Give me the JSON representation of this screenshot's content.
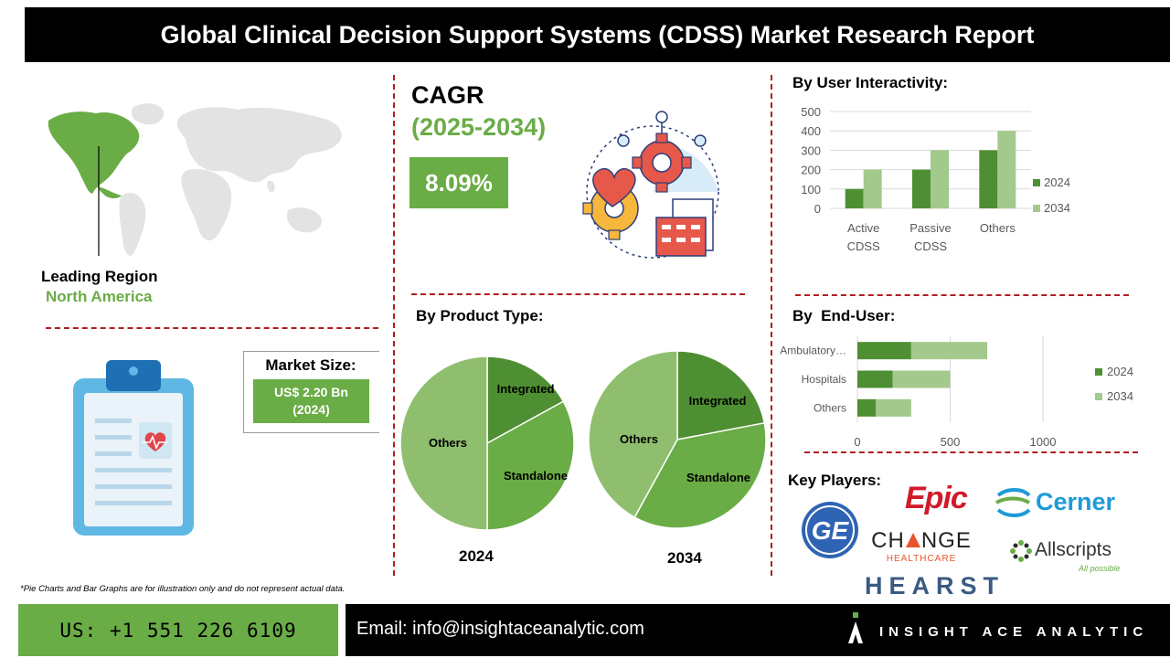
{
  "header": {
    "title": "Global Clinical Decision Support Systems (CDSS) Market Research Report"
  },
  "region": {
    "label": "Leading Region",
    "value": "North America"
  },
  "cagr": {
    "label": "CAGR",
    "period": "(2025-2034)",
    "value": "8.09%"
  },
  "market_size": {
    "label": "Market Size:",
    "value": "US$ 2.20 Bn",
    "year": "(2024)"
  },
  "sections": {
    "user_interactivity": "By User Interactivity:",
    "product_type": "By Product Type:",
    "end_user": "By  End-User:",
    "key_players": "Key Players:"
  },
  "chart_data": [
    {
      "type": "bar",
      "categories": [
        "Active CDSS",
        "Passive CDSS",
        "Others"
      ],
      "category_lines": [
        [
          "Active",
          "CDSS"
        ],
        [
          "Passive",
          "CDSS"
        ],
        [
          "Others"
        ]
      ],
      "series": [
        {
          "name": "2024",
          "values": [
            100,
            200,
            300
          ],
          "color": "#4f8f33"
        },
        {
          "name": "2034",
          "values": [
            200,
            300,
            400
          ],
          "color": "#a4c98c"
        }
      ],
      "ylim": [
        0,
        500
      ],
      "yticks": [
        "0",
        "100",
        "200",
        "300",
        "400",
        "500"
      ],
      "grid": true,
      "legend": "right"
    },
    {
      "type": "pie",
      "xlabel": "2024",
      "slices": [
        {
          "label": "Integrated",
          "value": 17,
          "color": "#4f8f33"
        },
        {
          "label": "Standalone",
          "value": 33,
          "color": "#6aac46"
        },
        {
          "label": "Others",
          "value": 50,
          "color": "#8fbf6e"
        }
      ]
    },
    {
      "type": "pie",
      "xlabel": "2034",
      "slices": [
        {
          "label": "Integrated",
          "value": 22,
          "color": "#4f8f33"
        },
        {
          "label": "Standalone",
          "value": 36,
          "color": "#6aac46"
        },
        {
          "label": "Others",
          "value": 42,
          "color": "#8fbf6e"
        }
      ]
    },
    {
      "type": "bar",
      "orientation": "horizontal",
      "categories": [
        "Ambulatory…",
        "Hospitals",
        "Others"
      ],
      "series": [
        {
          "name": "2024",
          "values": [
            290,
            190,
            100
          ],
          "color": "#4f8f33"
        },
        {
          "name": "2034",
          "values": [
            410,
            310,
            190
          ],
          "color": "#a4c98c"
        }
      ],
      "xlim": [
        0,
        1000
      ],
      "xticks": [
        "0",
        "500",
        "1000"
      ],
      "grid": true,
      "stacked": true,
      "legend": "right"
    }
  ],
  "key_players": {
    "ge": "GE",
    "epic": "Epic",
    "cerner": "Cerner",
    "change_line1": "CH",
    "change_line1b": "NGE",
    "change_line2": "HEALTHCARE",
    "allscripts": "Allscripts",
    "allscripts_tag": "All possible",
    "hearst": "HEARST"
  },
  "disclaimer": "*Pie Charts and Bar Graphs are for illustration only and do not represent actual data.",
  "footer": {
    "phone": "US: +1 551 226 6109",
    "email": "Email: info@insightaceanalytic.com",
    "brand": "INSIGHT ACE ANALYTIC"
  },
  "colors": {
    "accent_green": "#6aac46",
    "dark_green": "#4f8f33",
    "light_green": "#a4c98c",
    "divider_red": "#b01e1e"
  }
}
